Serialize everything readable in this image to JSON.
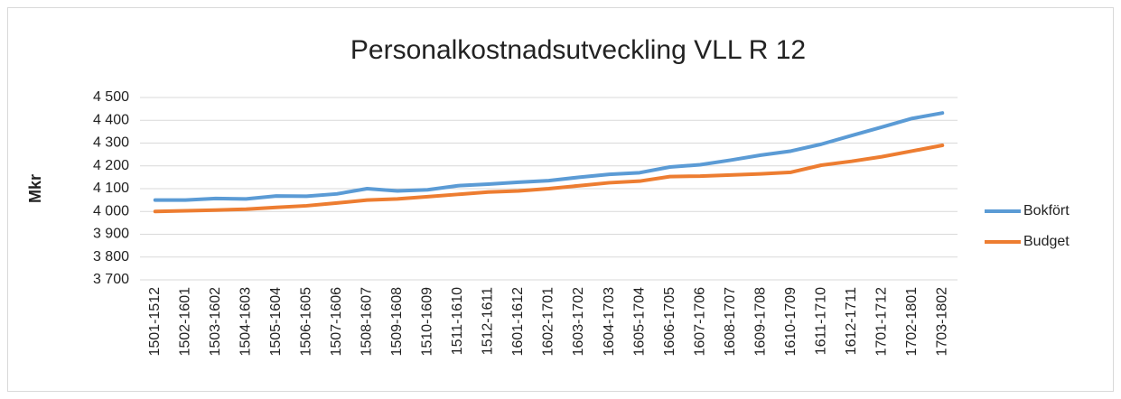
{
  "chart_data": {
    "type": "line",
    "title": "Personalkostnadsutveckling  VLL  R 12",
    "y_label": "Mkr",
    "categories": [
      "1501-1512",
      "1502-1601",
      "1503-1602",
      "1504-1603",
      "1505-1604",
      "1506-1605",
      "1507-1606",
      "1508-1607",
      "1509-1608",
      "1510-1609",
      "1511-1610",
      "1512-1611",
      "1601-1612",
      "1602-1701",
      "1603-1702",
      "1604-1703",
      "1605-1704",
      "1606-1705",
      "1607-1706",
      "1608-1707",
      "1609-1708",
      "1610-1709",
      "1611-1710",
      "1612-1711",
      "1701-1712",
      "1702-1801",
      "1703-1802"
    ],
    "series": [
      {
        "name": "Bokfört",
        "color": "#5b9bd5",
        "values": [
          4050,
          4050,
          4057,
          4055,
          4068,
          4067,
          4077,
          4100,
          4090,
          4095,
          4113,
          4120,
          4128,
          4135,
          4150,
          4163,
          4170,
          4195,
          4205,
          4225,
          4247,
          4265,
          4295,
          4333,
          4370,
          4408,
          4432
        ]
      },
      {
        "name": "Budget",
        "color": "#ed7d31",
        "values": [
          4000,
          4003,
          4006,
          4010,
          4018,
          4025,
          4037,
          4050,
          4055,
          4065,
          4075,
          4085,
          4090,
          4100,
          4113,
          4126,
          4133,
          4153,
          4155,
          4160,
          4165,
          4172,
          4203,
          4220,
          4240,
          4265,
          4290
        ]
      }
    ],
    "ylim": [
      3700,
      4500
    ],
    "yticks": [
      {
        "value": 3700,
        "label": "3 700"
      },
      {
        "value": 3800,
        "label": "3 800"
      },
      {
        "value": 3900,
        "label": "3 900"
      },
      {
        "value": 4000,
        "label": "4 000"
      },
      {
        "value": 4100,
        "label": "4 100"
      },
      {
        "value": 4200,
        "label": "4 200"
      },
      {
        "value": 4300,
        "label": "4 300"
      },
      {
        "value": 4400,
        "label": "4 400"
      },
      {
        "value": 4500,
        "label": "4 500"
      }
    ],
    "grid": true,
    "legend": "right"
  }
}
